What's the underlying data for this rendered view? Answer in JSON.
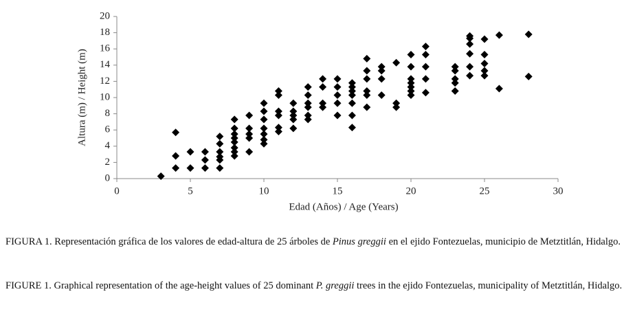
{
  "chart_data": {
    "type": "scatter",
    "x_label": "Edad (Años) / Age (Years)",
    "y_label": "Altura (m) / Height (m)",
    "color": "#000000",
    "xlim": [
      0,
      30
    ],
    "xticks": [
      0,
      5,
      10,
      15,
      20,
      25,
      30
    ],
    "ylim": [
      0,
      20
    ],
    "yticks": [
      0,
      2,
      4,
      6,
      8,
      10,
      12,
      14,
      16,
      18,
      20
    ],
    "x": [
      3,
      4,
      4,
      4,
      5,
      5,
      6,
      6,
      6,
      7,
      7,
      7,
      7,
      7,
      7,
      8,
      8,
      8,
      8,
      8,
      8,
      8,
      8,
      9,
      9,
      9,
      9,
      9,
      10,
      10,
      10,
      10,
      10,
      10,
      10,
      11,
      11,
      11,
      11,
      11,
      11,
      12,
      12,
      12,
      12,
      12,
      13,
      13,
      13,
      13,
      13,
      13,
      14,
      14,
      14,
      14,
      15,
      15,
      15,
      15,
      15,
      16,
      16,
      16,
      16,
      16,
      16,
      16,
      17,
      17,
      17,
      17,
      17,
      17,
      18,
      18,
      18,
      18,
      19,
      19,
      19,
      20,
      20,
      20,
      20,
      20,
      20,
      20,
      21,
      21,
      21,
      21,
      21,
      23,
      23,
      23,
      23,
      23,
      24,
      24,
      24,
      24,
      24,
      24,
      25,
      25,
      25,
      25,
      25,
      26,
      26,
      28,
      28
    ],
    "y": [
      0.3,
      5.7,
      2.8,
      1.3,
      3.3,
      1.3,
      3.3,
      2.3,
      1.3,
      5.2,
      4.3,
      3.3,
      2.7,
      2.3,
      1.3,
      7.3,
      6.2,
      5.5,
      5.0,
      4.5,
      3.8,
      3.3,
      2.8,
      7.8,
      6.2,
      5.5,
      5.0,
      3.3,
      9.3,
      8.3,
      7.3,
      6.2,
      5.5,
      4.8,
      4.3,
      10.8,
      10.3,
      8.3,
      7.8,
      6.3,
      5.8,
      9.3,
      8.3,
      7.8,
      7.3,
      6.2,
      11.3,
      10.3,
      9.3,
      8.8,
      7.8,
      7.3,
      12.3,
      11.3,
      9.3,
      8.8,
      12.3,
      11.3,
      10.3,
      9.3,
      7.8,
      11.8,
      11.3,
      10.8,
      10.3,
      9.3,
      7.8,
      6.3,
      14.8,
      13.3,
      12.3,
      10.8,
      10.3,
      8.8,
      13.8,
      13.3,
      12.3,
      10.3,
      14.3,
      9.3,
      8.8,
      15.3,
      13.8,
      12.3,
      11.8,
      11.3,
      10.8,
      10.3,
      16.3,
      15.3,
      13.8,
      12.3,
      10.6,
      13.8,
      13.3,
      12.3,
      11.8,
      10.8,
      17.6,
      17.3,
      16.6,
      15.4,
      13.8,
      12.7,
      17.2,
      15.3,
      14.2,
      13.3,
      12.7,
      17.7,
      11.1,
      17.8,
      12.6
    ]
  },
  "captions": [
    {
      "before": "FIGURA 1. Representación gráfica de los valores de edad-altura de 25 árboles de ",
      "italic": "Pinus greggii",
      "after": " en el ejido Fontezuelas, municipio de Metztitlán, Hidalgo."
    },
    {
      "before": "FIGURE 1. Graphical representation of the age-height values of 25 dominant ",
      "italic": "P. greggii",
      "after": " trees in the ejido Fontezuelas, municipality of Metztitlán, Hidalgo."
    }
  ]
}
